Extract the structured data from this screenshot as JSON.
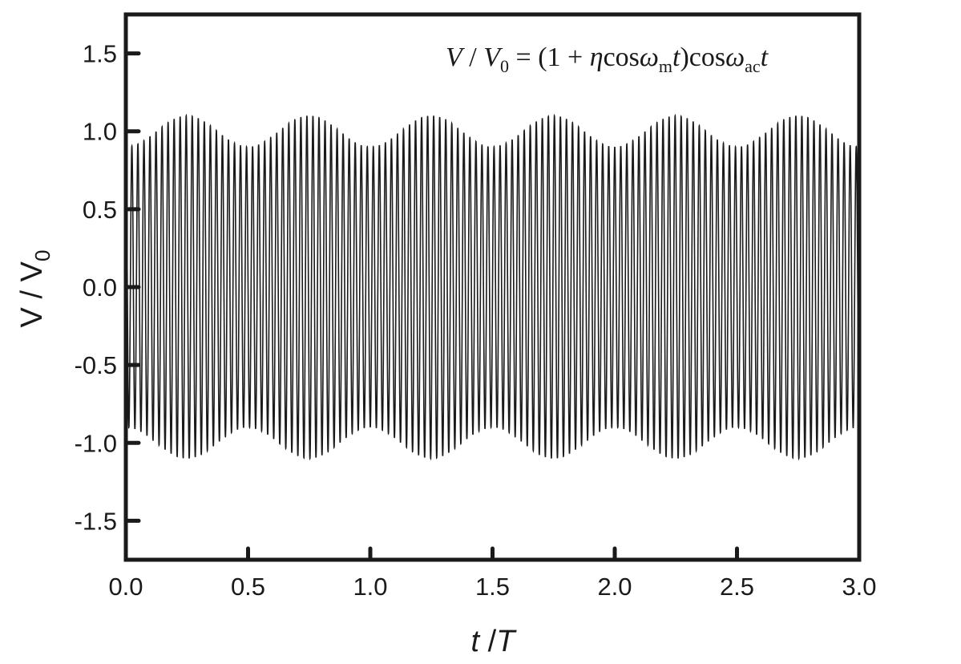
{
  "chart_data": {
    "type": "line",
    "title": "",
    "annotation": "V / V0 = (1 + η cos ω_m t) cos ω_ac t",
    "xlabel": "t /T",
    "ylabel": "V / V0",
    "xlim": [
      0.0,
      3.0
    ],
    "ylim": [
      -1.75,
      1.75
    ],
    "xticks": [
      "0.0",
      "0.5",
      "1.0",
      "1.5",
      "2.0",
      "2.5",
      "3.0"
    ],
    "yticks": [
      "1.5",
      "1.0",
      "0.5",
      "0.0",
      "-0.5",
      "-1.0",
      "-1.5"
    ],
    "grid": false,
    "legend": null,
    "series": [
      {
        "name": "V/V0",
        "description": "Amplitude-modulated carrier; envelope oscillates between 0.9 and 1.1",
        "carrier_cycles_per_T": 40.5,
        "modulation_depth_eta": 0.1,
        "envelope_period_T": 0.5,
        "envelope_max": 1.1,
        "envelope_min": 0.9,
        "envelope_peaks_at_t_over_T": [
          0.25,
          0.75,
          1.25,
          1.75,
          2.25,
          2.75
        ],
        "envelope_troughs_at_t_over_T": [
          0.0,
          0.5,
          1.0,
          1.5,
          2.0,
          2.5,
          3.0
        ]
      }
    ]
  },
  "labels": {
    "xlabel_t": "t",
    "xlabel_sep": " /",
    "xlabel_T": "T",
    "ylabel_V": "V",
    "ylabel_sep": " / ",
    "ylabel_V0": "V",
    "ylabel_sub": "0"
  },
  "formula": {
    "V": "V",
    "slash": " / ",
    "V0": "V",
    "sub0": "0",
    "eq": " = (1 + ",
    "eta": "η",
    "cos1": "cos",
    "omega1": "ω",
    "sub_m": "m",
    "t1": "t",
    "close": ")cos",
    "omega2": "ω",
    "sub_ac": "ac",
    "t2": "t"
  },
  "style": {
    "line_color": "#1a1a1a",
    "frame_color": "#1a1a1a",
    "background": "#ffffff"
  }
}
